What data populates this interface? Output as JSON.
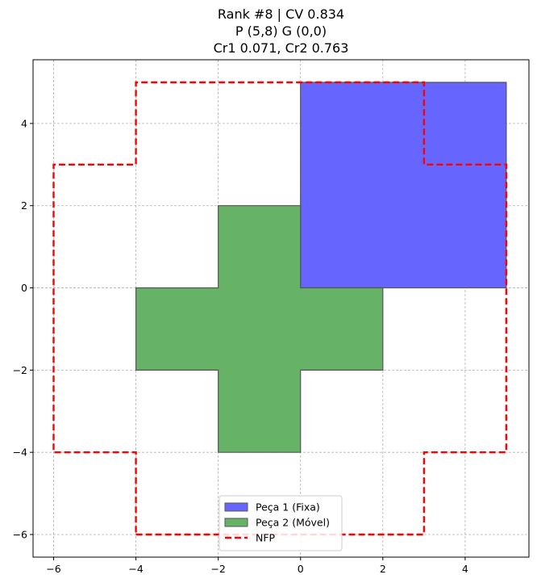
{
  "chart_data": {
    "type": "polygon-plot",
    "title_lines": [
      "Rank #8 | CV 0.834",
      "P (5,8) G (0,0)",
      "Cr1 0.071, Cr2 0.763"
    ],
    "xlim": [
      -6.5,
      5.55
    ],
    "ylim": [
      -6.55,
      5.55
    ],
    "x_ticks": [
      -6,
      -4,
      -2,
      0,
      2,
      4
    ],
    "y_ticks": [
      -6,
      -4,
      -2,
      0,
      2,
      4
    ],
    "x_tick_labels": [
      "−6",
      "−4",
      "−2",
      "0",
      "2",
      "4"
    ],
    "y_tick_labels": [
      "−6",
      "−4",
      "−2",
      "0",
      "2",
      "4"
    ],
    "grid": true,
    "legend_position": "bottom-center",
    "shapes": [
      {
        "name": "Peça 1 (Fixa)",
        "kind": "filled-polygon",
        "fill": "#6666ff",
        "stroke": "#555555",
        "points": [
          [
            0,
            0
          ],
          [
            5,
            0
          ],
          [
            5,
            5
          ],
          [
            0,
            5
          ]
        ]
      },
      {
        "name": "Peça 2 (Móvel)",
        "kind": "filled-polygon",
        "fill": "#66b266",
        "stroke": "#555555",
        "points": [
          [
            -2,
            -4
          ],
          [
            0,
            -4
          ],
          [
            0,
            -2
          ],
          [
            2,
            -2
          ],
          [
            2,
            0
          ],
          [
            0,
            0
          ],
          [
            0,
            2
          ],
          [
            -2,
            2
          ],
          [
            -2,
            0
          ],
          [
            -4,
            0
          ],
          [
            -4,
            -2
          ],
          [
            -2,
            -2
          ]
        ]
      },
      {
        "name": "NFP",
        "kind": "dashed-outline",
        "stroke": "#ff0000",
        "points": [
          [
            -4,
            -6
          ],
          [
            3,
            -6
          ],
          [
            3,
            -4
          ],
          [
            5,
            -4
          ],
          [
            5,
            3
          ],
          [
            3,
            3
          ],
          [
            3,
            5
          ],
          [
            -4,
            5
          ],
          [
            -4,
            3
          ],
          [
            -6,
            3
          ],
          [
            -6,
            -4
          ],
          [
            -4,
            -4
          ]
        ]
      }
    ]
  }
}
